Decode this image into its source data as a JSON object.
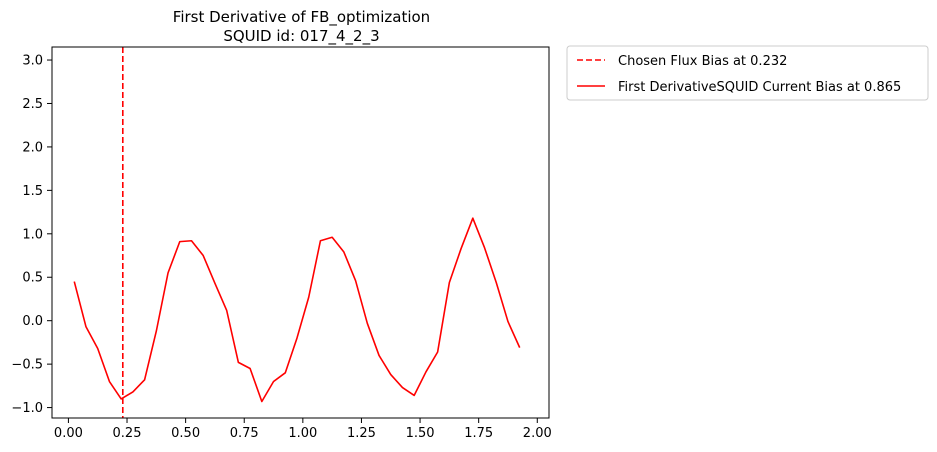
{
  "chart_data": {
    "type": "line",
    "title": "First Derivative of FB_optimization",
    "subtitle": "SQUID id: 017_4_2_3",
    "xlabel": "",
    "ylabel": "",
    "xlim": [
      -0.07,
      2.05
    ],
    "ylim": [
      -1.12,
      3.15
    ],
    "xticks": [
      0.0,
      0.25,
      0.5,
      0.75,
      1.0,
      1.25,
      1.5,
      1.75,
      2.0
    ],
    "xtick_labels": [
      "0.00",
      "0.25",
      "0.50",
      "0.75",
      "1.00",
      "1.25",
      "1.50",
      "1.75",
      "2.00"
    ],
    "yticks": [
      -1.0,
      -0.5,
      0.0,
      0.5,
      1.0,
      1.5,
      2.0,
      2.5,
      3.0
    ],
    "ytick_labels": [
      "−1.0",
      "−0.5",
      "0.0",
      "0.5",
      "1.0",
      "1.5",
      "2.0",
      "2.5",
      "3.0"
    ],
    "grid": false,
    "legend_position": "outside-top-right",
    "vline": {
      "name": "Chosen Flux Bias at 0.232",
      "x": 0.232,
      "color": "#ff0000",
      "style": "dashed"
    },
    "series": [
      {
        "name": "First DerivativeSQUID Current Bias at 0.865",
        "color": "#ff0000",
        "style": "solid",
        "x": [
          0.025,
          0.075,
          0.125,
          0.175,
          0.225,
          0.275,
          0.325,
          0.375,
          0.425,
          0.475,
          0.525,
          0.575,
          0.625,
          0.675,
          0.725,
          0.775,
          0.825,
          0.875,
          0.925,
          0.975,
          1.025,
          1.075,
          1.125,
          1.175,
          1.225,
          1.275,
          1.325,
          1.375,
          1.425,
          1.475,
          1.525,
          1.575,
          1.625,
          1.675,
          1.725,
          1.775,
          1.825,
          1.875,
          1.925
        ],
        "y": [
          0.45,
          -0.07,
          -0.32,
          -0.7,
          -0.9,
          -0.82,
          -0.68,
          -0.12,
          0.55,
          0.91,
          0.92,
          0.75,
          0.43,
          0.12,
          -0.48,
          -0.55,
          -0.93,
          -0.7,
          -0.6,
          -0.2,
          0.27,
          0.92,
          0.96,
          0.79,
          0.46,
          -0.03,
          -0.4,
          -0.62,
          -0.77,
          -0.86,
          -0.59,
          -0.36,
          0.44,
          0.83,
          1.18,
          0.84,
          0.44,
          -0.01,
          -0.31
        ]
      }
    ]
  }
}
